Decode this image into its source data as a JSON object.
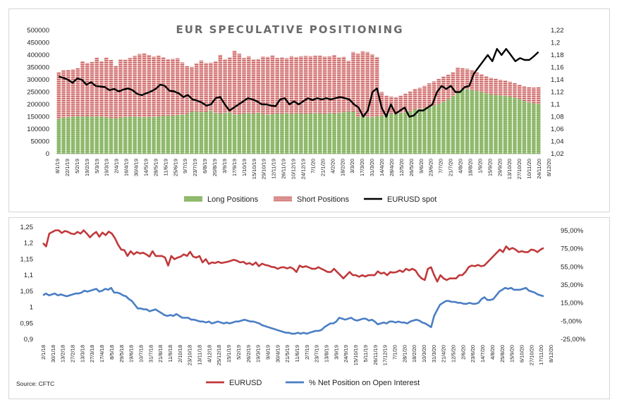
{
  "chart_data": [
    {
      "type": "bar",
      "title": "EUR SPECULATIVE POSITIONING",
      "y_left_ticks": [
        "500000",
        "450000",
        "400000",
        "350000",
        "300000",
        "250000",
        "200000",
        "150000",
        "100000",
        "50000",
        "0"
      ],
      "y_left_lim": [
        0,
        500000
      ],
      "y_right_ticks": [
        "1,22",
        "1,2",
        "1,18",
        "1,16",
        "1,14",
        "1,12",
        "1,1",
        "1,08",
        "1,06",
        "1,04",
        "1,02"
      ],
      "y_right_lim": [
        1.02,
        1.22
      ],
      "x_tick_labels": [
        "8/1/19",
        "22/1/19",
        "5/2/19",
        "19/2/19",
        "5/3/19",
        "19/3/19",
        "2/4/19",
        "16/4/19",
        "30/4/19",
        "14/5/19",
        "28/5/19",
        "11/6/19",
        "25/6/19",
        "9/7/19",
        "23/7/19",
        "6/8/19",
        "20/8/19",
        "3/9/19",
        "17/9/19",
        "1/10/19",
        "15/10/19",
        "29/10/19",
        "12/11/19",
        "26/11/19",
        "10/12/19",
        "24/12/19",
        "7/1/20",
        "21/1/20",
        "4/2/20",
        "18/2/20",
        "3/3/20",
        "17/3/20",
        "31/3/20",
        "14/4/20",
        "28/4/20",
        "12/5/20",
        "26/5/20",
        "9/6/20",
        "23/6/20",
        "7/7/20",
        "21/7/20",
        "4/8/20",
        "18/8/20",
        "1/9/20",
        "15/9/20",
        "29/9/20",
        "13/10/20",
        "27/10/20",
        "10/11/20",
        "24/11/20",
        "8/12/20"
      ],
      "series": [
        {
          "name": "Long Positions",
          "color": "#7fae5a",
          "values": [
            140000,
            148000,
            148000,
            150000,
            152000,
            150000,
            153000,
            150000,
            151000,
            150000,
            149000,
            145000,
            144000,
            147000,
            149000,
            150000,
            151000,
            149000,
            148000,
            150000,
            149000,
            152000,
            153000,
            155000,
            155000,
            157000,
            158000,
            162000,
            170000,
            172000,
            168000,
            170000,
            174000,
            165000,
            163000,
            165000,
            168000,
            158000,
            160000,
            163000,
            165000,
            162000,
            166000,
            160000,
            158000,
            160000,
            163000,
            162000,
            165000,
            160000,
            164000,
            163000,
            162000,
            163000,
            165000,
            163000,
            162000,
            165000,
            163000,
            165000,
            168000,
            172000,
            170000,
            150000,
            152000,
            150000,
            148000,
            152000,
            155000,
            160000,
            162000,
            160000,
            165000,
            168000,
            172000,
            180000,
            182000,
            185000,
            190000,
            195000,
            203000,
            210000,
            220000,
            235000,
            255000,
            262000,
            262000,
            258000,
            255000,
            250000,
            245000,
            240000,
            238000,
            236000,
            235000,
            232000,
            228000,
            222000,
            214000,
            208000,
            204000,
            202000
          ]
        },
        {
          "name": "Short Positions",
          "color": "#c9585a",
          "values": [
            190000,
            190000,
            192000,
            192000,
            195000,
            225000,
            215000,
            222000,
            238000,
            225000,
            240000,
            235000,
            212000,
            235000,
            232000,
            238000,
            245000,
            255000,
            258000,
            250000,
            245000,
            245000,
            238000,
            228000,
            230000,
            230000,
            212000,
            193000,
            182000,
            195000,
            210000,
            198000,
            195000,
            210000,
            238000,
            217000,
            222000,
            260000,
            245000,
            225000,
            230000,
            220000,
            218000,
            234000,
            235000,
            238000,
            225000,
            228000,
            222000,
            235000,
            228000,
            232000,
            234000,
            232000,
            232000,
            234000,
            232000,
            230000,
            237000,
            225000,
            225000,
            205000,
            242000,
            255000,
            262000,
            262000,
            255000,
            240000,
            95000,
            75000,
            70000,
            70000,
            70000,
            75000,
            80000,
            83000,
            85000,
            90000,
            95000,
            98000,
            100000,
            103000,
            100000,
            95000,
            95000,
            85000,
            82000,
            80000,
            75000,
            72000,
            70000,
            68000,
            66000,
            64000,
            62000,
            60000,
            58000,
            58000,
            60000,
            62000,
            64000,
            68000
          ]
        },
        {
          "name": "EURUSD spot",
          "color": "#000000",
          "values": [
            1.145,
            1.143,
            1.14,
            1.135,
            1.142,
            1.14,
            1.132,
            1.136,
            1.13,
            1.129,
            1.128,
            1.123,
            1.125,
            1.121,
            1.124,
            1.126,
            1.123,
            1.117,
            1.115,
            1.118,
            1.121,
            1.125,
            1.132,
            1.13,
            1.122,
            1.121,
            1.118,
            1.112,
            1.115,
            1.108,
            1.106,
            1.103,
            1.098,
            1.1,
            1.11,
            1.112,
            1.1,
            1.09,
            1.095,
            1.1,
            1.105,
            1.11,
            1.108,
            1.105,
            1.1,
            1.1,
            1.098,
            1.097,
            1.108,
            1.11,
            1.1,
            1.105,
            1.1,
            1.105,
            1.11,
            1.107,
            1.11,
            1.108,
            1.11,
            1.108,
            1.11,
            1.112,
            1.11,
            1.108,
            1.1,
            1.095,
            1.08,
            1.09,
            1.12,
            1.126,
            1.095,
            1.08,
            1.1,
            1.085,
            1.09,
            1.095,
            1.08,
            1.082,
            1.09,
            1.09,
            1.095,
            1.1,
            1.12,
            1.13,
            1.125,
            1.13,
            1.12,
            1.12,
            1.128,
            1.13,
            1.15,
            1.16,
            1.17,
            1.18,
            1.17,
            1.19,
            1.18,
            1.19,
            1.18,
            1.17,
            1.175,
            1.172,
            1.172,
            1.178,
            1.185
          ]
        }
      ],
      "legend": [
        "Long Positions",
        "Short Positions",
        "EURUSD spot"
      ],
      "legend_placement": "bottom"
    },
    {
      "type": "line",
      "y_left_ticks": [
        "1,25",
        "1,2",
        "1,15",
        "1,1",
        "1,05",
        "1",
        "0,95",
        "0,9"
      ],
      "y_left_lim": [
        0.9,
        1.25
      ],
      "y_right_ticks": [
        "95,00%",
        "75,00%",
        "55,00%",
        "35,00%",
        "15,00%",
        "-5,00%",
        "-25,00%"
      ],
      "y_right_lim": [
        -25,
        95
      ],
      "x_tick_labels": [
        "2/1/18",
        "30/1/18",
        "13/2/18",
        "27/2/18",
        "13/3/18",
        "27/3/18",
        "17/4/18",
        "8/5/18",
        "29/5/18",
        "19/6/18",
        "10/7/18",
        "31/7/18",
        "21/8/18",
        "11/9/18",
        "2/10/18",
        "23/10/18",
        "13/11/18",
        "4/12/18",
        "25/12/18",
        "15/1/19",
        "5/2/19",
        "26/2/19",
        "19/3/19",
        "9/4/19",
        "30/4/19",
        "21/5/19",
        "11/6/19",
        "2/7/19",
        "23/7/19",
        "13/8/19",
        "3/9/19",
        "24/9/19",
        "15/10/19",
        "5/11/19",
        "26/11/19",
        "17/12/19",
        "7/1/20",
        "28/1/20",
        "18/2/20",
        "10/3/20",
        "31/3/20",
        "21/4/20",
        "12/5/20",
        "2/6/20",
        "23/6/20",
        "14/7/20",
        "4/8/20",
        "25/8/20",
        "15/9/20",
        "6/10/20",
        "27/10/20",
        "17/11/20",
        "8/12/20"
      ],
      "series": [
        {
          "name": "EURUSD",
          "color": "#c0393b",
          "values": [
            1.2,
            1.19,
            1.23,
            1.235,
            1.24,
            1.24,
            1.232,
            1.238,
            1.235,
            1.23,
            1.228,
            1.235,
            1.23,
            1.24,
            1.23,
            1.218,
            1.228,
            1.235,
            1.22,
            1.233,
            1.225,
            1.236,
            1.23,
            1.215,
            1.195,
            1.18,
            1.178,
            1.16,
            1.175,
            1.165,
            1.172,
            1.168,
            1.17,
            1.165,
            1.158,
            1.175,
            1.16,
            1.16,
            1.16,
            1.155,
            1.13,
            1.16,
            1.15,
            1.155,
            1.158,
            1.165,
            1.16,
            1.173,
            1.158,
            1.155,
            1.16,
            1.14,
            1.15,
            1.135,
            1.14,
            1.138,
            1.142,
            1.138,
            1.14,
            1.142,
            1.145,
            1.148,
            1.145,
            1.14,
            1.142,
            1.135,
            1.138,
            1.132,
            1.14,
            1.128,
            1.136,
            1.132,
            1.13,
            1.126,
            1.125,
            1.12,
            1.124,
            1.125,
            1.121,
            1.125,
            1.12,
            1.11,
            1.13,
            1.125,
            1.128,
            1.124,
            1.12,
            1.12,
            1.125,
            1.12,
            1.115,
            1.11,
            1.11,
            1.12,
            1.11,
            1.1,
            1.09,
            1.1,
            1.11,
            1.1,
            1.1,
            1.095,
            1.1,
            1.096,
            1.1,
            1.1,
            1.1,
            1.112,
            1.105,
            1.108,
            1.1,
            1.11,
            1.108,
            1.11,
            1.115,
            1.11,
            1.12,
            1.115,
            1.12,
            1.115,
            1.1,
            1.09,
            1.085,
            1.12,
            1.125,
            1.1,
            1.08,
            1.1,
            1.09,
            1.085,
            1.09,
            1.09,
            1.09,
            1.1,
            1.1,
            1.11,
            1.125,
            1.13,
            1.128,
            1.132,
            1.128,
            1.13,
            1.14,
            1.15,
            1.16,
            1.17,
            1.18,
            1.172,
            1.19,
            1.18,
            1.185,
            1.18,
            1.172,
            1.175,
            1.172,
            1.172,
            1.18,
            1.178,
            1.172,
            1.18,
            1.185
          ]
        },
        {
          "name": "% Net Position on Open Interest",
          "color": "#4a7ec4",
          "values": [
            22,
            24,
            22,
            23,
            24,
            22,
            23,
            22,
            21,
            22,
            23,
            24,
            24,
            25,
            27,
            26,
            27,
            28,
            29,
            26,
            27,
            29,
            28,
            30,
            25,
            25,
            24,
            22,
            21,
            18,
            16,
            12,
            8,
            8,
            7,
            7,
            5,
            6,
            7,
            5,
            3,
            1,
            0,
            1,
            0,
            2,
            0,
            -2,
            -2,
            -2,
            -4,
            -4,
            -5,
            -6,
            -6,
            -7,
            -6,
            -8,
            -7,
            -6,
            -7,
            -8,
            -7,
            -8,
            -7,
            -6,
            -6,
            -5,
            -4,
            -5,
            -6,
            -6,
            -7,
            -8,
            -10,
            -11,
            -12,
            -13,
            -14,
            -15,
            -16,
            -17,
            -18,
            -18,
            -19,
            -19,
            -18,
            -19,
            -18,
            -19,
            -18,
            -17,
            -16,
            -16,
            -15,
            -12,
            -10,
            -8,
            -8,
            -6,
            -2,
            -3,
            -4,
            -3,
            -2,
            -4,
            -5,
            -4,
            -3,
            -3,
            -5,
            -4,
            -6,
            -9,
            -8,
            -7,
            -8,
            -6,
            -6,
            -7,
            -6,
            -7,
            -7,
            -8,
            -6,
            -5,
            -4,
            -5,
            -7,
            -8,
            -10,
            -12,
            0,
            6,
            12,
            14,
            16,
            16,
            15,
            15,
            14,
            14,
            13,
            13,
            14,
            13,
            13,
            14,
            18,
            20,
            17,
            17,
            18,
            22,
            26,
            28,
            30,
            29,
            30,
            28,
            28,
            28,
            29,
            30,
            27,
            26,
            25,
            23,
            22,
            21
          ]
        }
      ],
      "legend": [
        "EURUSD",
        "% Net Position on Open Interest"
      ],
      "legend_placement": "bottom"
    }
  ],
  "source": "Source: CFTC"
}
